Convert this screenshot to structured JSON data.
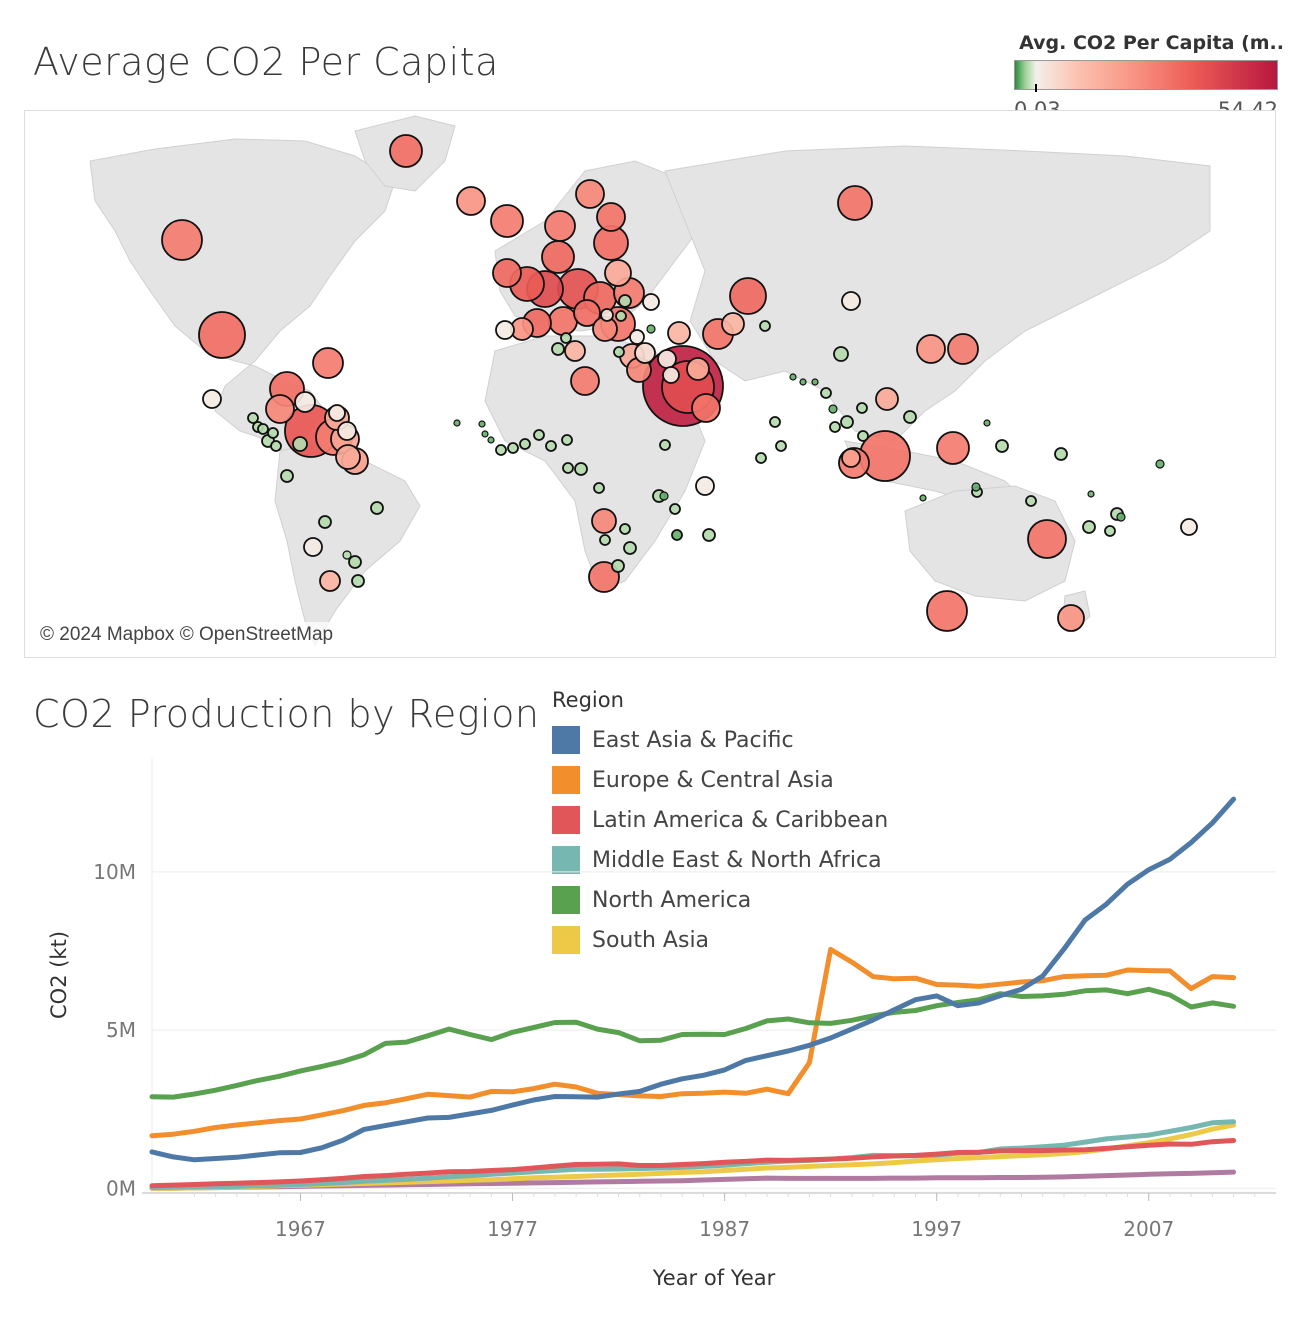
{
  "map": {
    "title": "Average CO2 Per Capita",
    "credit": "© 2024 Mapbox © OpenStreetMap",
    "legend": {
      "title": "Avg. CO2 Per Capita (m..",
      "min_label": "0.03",
      "max_label": "54.42"
    },
    "colors": {
      "low": "#2d8a3e",
      "mid": "#f3f0ea",
      "high": "#b7173f",
      "land": "#e4e4e4"
    }
  },
  "chart_data": {
    "type": "line",
    "title": "CO2 Production by Region",
    "xlabel": "Year of Year",
    "ylabel": "CO2 (kt)",
    "xlim": [
      1960,
      2013
    ],
    "ylim": [
      -150000,
      13600000
    ],
    "x_ticks": [
      1967,
      1977,
      1987,
      1997,
      2007
    ],
    "x_tick_labels": [
      "1967",
      "1977",
      "1987",
      "1997",
      "2007"
    ],
    "y_ticks": [
      0,
      5000000,
      10000000
    ],
    "y_tick_labels": [
      "0M",
      "5M",
      "10M"
    ],
    "legend": {
      "title": "Region",
      "placement": "top-center"
    },
    "x": [
      1960,
      1961,
      1962,
      1963,
      1964,
      1965,
      1966,
      1967,
      1968,
      1969,
      1970,
      1971,
      1972,
      1973,
      1974,
      1975,
      1976,
      1977,
      1978,
      1979,
      1980,
      1981,
      1982,
      1983,
      1984,
      1985,
      1986,
      1987,
      1988,
      1989,
      1990,
      1991,
      1992,
      1993,
      1994,
      1995,
      1996,
      1997,
      1998,
      1999,
      2000,
      2001,
      2002,
      2003,
      2004,
      2005,
      2006,
      2007,
      2008,
      2009,
      2010,
      2011
    ],
    "series": [
      {
        "name": "East Asia & Pacific",
        "color": "#4e79a7",
        "values": [
          1150000,
          990000,
          900000,
          940000,
          980000,
          1050000,
          1120000,
          1130000,
          1280000,
          1520000,
          1860000,
          1980000,
          2100000,
          2220000,
          2240000,
          2350000,
          2460000,
          2630000,
          2790000,
          2900000,
          2890000,
          2880000,
          2980000,
          3060000,
          3290000,
          3460000,
          3570000,
          3740000,
          4040000,
          4190000,
          4340000,
          4520000,
          4750000,
          5030000,
          5320000,
          5640000,
          5960000,
          6080000,
          5770000,
          5860000,
          6090000,
          6290000,
          6710000,
          7560000,
          8480000,
          8980000,
          9610000,
          10070000,
          10400000,
          10930000,
          11550000,
          12300000
        ]
      },
      {
        "name": "Europe & Central Asia",
        "color": "#f28e2b",
        "values": [
          1660000,
          1710000,
          1800000,
          1920000,
          2000000,
          2070000,
          2140000,
          2190000,
          2320000,
          2450000,
          2620000,
          2700000,
          2830000,
          2970000,
          2930000,
          2880000,
          3060000,
          3050000,
          3150000,
          3290000,
          3200000,
          3000000,
          2960000,
          2920000,
          2900000,
          2990000,
          3000000,
          3040000,
          3000000,
          3130000,
          2990000,
          3970000,
          7550000,
          7150000,
          6690000,
          6620000,
          6640000,
          6440000,
          6420000,
          6380000,
          6450000,
          6520000,
          6560000,
          6690000,
          6720000,
          6730000,
          6900000,
          6880000,
          6870000,
          6310000,
          6690000,
          6660000
        ]
      },
      {
        "name": "Latin America & Caribbean",
        "color": "#e15759",
        "values": [
          80000,
          100000,
          120000,
          140000,
          160000,
          180000,
          200000,
          230000,
          270000,
          310000,
          370000,
          400000,
          440000,
          480000,
          520000,
          530000,
          560000,
          590000,
          640000,
          700000,
          750000,
          760000,
          770000,
          720000,
          720000,
          750000,
          780000,
          820000,
          850000,
          890000,
          880000,
          900000,
          920000,
          950000,
          990000,
          1020000,
          1040000,
          1080000,
          1130000,
          1140000,
          1180000,
          1190000,
          1190000,
          1210000,
          1220000,
          1260000,
          1310000,
          1360000,
          1400000,
          1390000,
          1470000,
          1510000
        ]
      },
      {
        "name": "Middle East & North Africa",
        "color": "#76b7b2",
        "values": [
          20000,
          30000,
          40000,
          50000,
          60000,
          80000,
          100000,
          120000,
          150000,
          180000,
          220000,
          250000,
          280000,
          320000,
          360000,
          400000,
          440000,
          480000,
          520000,
          560000,
          600000,
          600000,
          610000,
          620000,
          640000,
          660000,
          690000,
          730000,
          780000,
          820000,
          860000,
          880000,
          920000,
          970000,
          1040000,
          1030000,
          1030000,
          1050000,
          1110000,
          1130000,
          1240000,
          1270000,
          1310000,
          1360000,
          1460000,
          1560000,
          1620000,
          1680000,
          1800000,
          1920000,
          2070000,
          2100000
        ]
      },
      {
        "name": "North America",
        "color": "#59a14f",
        "values": [
          2890000,
          2880000,
          2980000,
          3100000,
          3250000,
          3410000,
          3540000,
          3710000,
          3850000,
          4010000,
          4220000,
          4580000,
          4620000,
          4820000,
          5030000,
          4860000,
          4700000,
          4930000,
          5080000,
          5240000,
          5250000,
          5030000,
          4920000,
          4660000,
          4680000,
          4860000,
          4870000,
          4860000,
          5050000,
          5290000,
          5350000,
          5230000,
          5210000,
          5310000,
          5450000,
          5560000,
          5620000,
          5770000,
          5870000,
          5960000,
          6150000,
          6060000,
          6080000,
          6130000,
          6240000,
          6270000,
          6150000,
          6290000,
          6110000,
          5730000,
          5860000,
          5750000
        ]
      },
      {
        "name": "South Asia",
        "color": "#edc948",
        "values": [
          0,
          0,
          10000,
          20000,
          40000,
          60000,
          80000,
          90000,
          110000,
          130000,
          150000,
          170000,
          190000,
          210000,
          230000,
          250000,
          270000,
          300000,
          330000,
          350000,
          370000,
          400000,
          420000,
          440000,
          470000,
          500000,
          520000,
          560000,
          600000,
          640000,
          660000,
          690000,
          720000,
          740000,
          770000,
          810000,
          860000,
          900000,
          940000,
          970000,
          1000000,
          1030000,
          1060000,
          1100000,
          1160000,
          1240000,
          1340000,
          1440000,
          1560000,
          1700000,
          1870000,
          2000000
        ]
      },
      {
        "name": "",
        "color": "#b07aa1",
        "values": [
          0,
          0,
          10000,
          20000,
          30000,
          40000,
          50000,
          60000,
          70000,
          80000,
          90000,
          100000,
          110000,
          120000,
          130000,
          140000,
          150000,
          160000,
          170000,
          180000,
          190000,
          200000,
          210000,
          220000,
          230000,
          240000,
          260000,
          280000,
          300000,
          320000,
          310000,
          310000,
          310000,
          310000,
          310000,
          320000,
          320000,
          330000,
          330000,
          330000,
          340000,
          340000,
          350000,
          360000,
          380000,
          400000,
          420000,
          440000,
          460000,
          470000,
          490000,
          510000
        ]
      }
    ]
  }
}
